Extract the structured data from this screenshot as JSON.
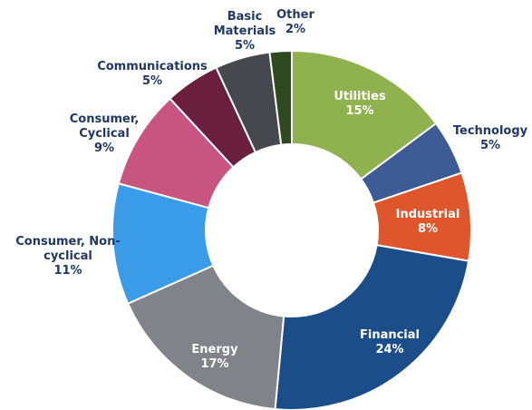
{
  "chart_data": {
    "type": "pie",
    "categories": [
      "Utilities",
      "Technology",
      "Industrial",
      "Financial",
      "Energy",
      "Consumer, Non-cyclical",
      "Consumer, Cyclical",
      "Communications",
      "Basic Materials",
      "Other"
    ],
    "values": [
      15,
      5,
      8,
      24,
      17,
      11,
      9,
      5,
      5,
      2
    ],
    "value_labels": [
      "15%",
      "5%",
      "8%",
      "24%",
      "17%",
      "11%",
      "9%",
      "5%",
      "5%",
      "2%"
    ],
    "colors": [
      "#8fb24e",
      "#3d5c96",
      "#e0562c",
      "#1b4e89",
      "#808389",
      "#3a9be8",
      "#c8557f",
      "#6a1f3d",
      "#45484c",
      "#2f4a20"
    ]
  }
}
